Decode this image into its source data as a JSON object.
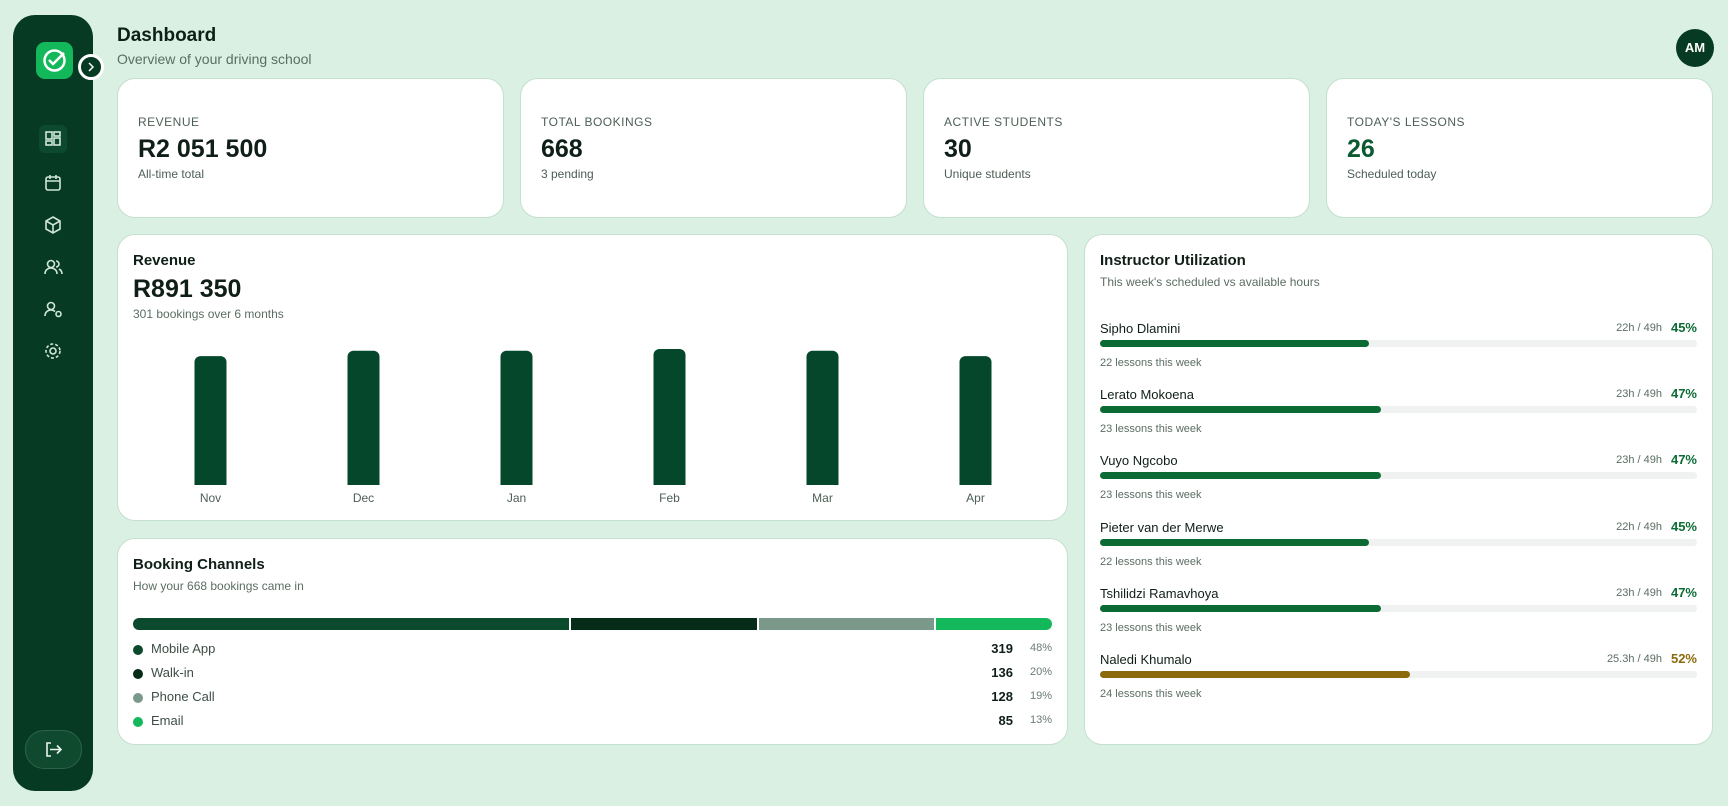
{
  "header": {
    "title": "Dashboard",
    "subtitle": "Overview of your driving school",
    "avatar": "AM"
  },
  "stats": [
    {
      "label": "REVENUE",
      "value": "R2 051 500",
      "note": "All-time total"
    },
    {
      "label": "TOTAL BOOKINGS",
      "value": 668,
      "note": "3 pending"
    },
    {
      "label": "ACTIVE STUDENTS",
      "value": 30,
      "note": "Unique students"
    },
    {
      "label": "TODAY'S LESSONS",
      "value": 26,
      "note": "Scheduled today"
    }
  ],
  "revenue_chart": {
    "title": "Revenue",
    "total": "R891 350",
    "subtitle": "301 bookings over 6 months",
    "categories": [
      "Nov",
      "Dec",
      "Jan",
      "Feb",
      "Mar",
      "Apr"
    ],
    "values": [
      144000,
      150000,
      150000,
      152000,
      150000,
      144000
    ],
    "color": "#05472a"
  },
  "booking_channels": {
    "title": "Booking Channels",
    "subtitle": "How your 668 bookings came in",
    "channels": [
      {
        "name": "Mobile App",
        "count": 319,
        "share": "48%",
        "color": "#0b4a2c"
      },
      {
        "name": "Walk-in",
        "count": 136,
        "share": "20%",
        "color": "#062b19"
      },
      {
        "name": "Phone Call",
        "count": 128,
        "share": "19%",
        "color": "#7a998a"
      },
      {
        "name": "Email",
        "count": 85,
        "share": "13%",
        "color": "#12b85a"
      }
    ]
  },
  "instructor_utilization": {
    "title": "Instructor Utilization",
    "subtitle": "This week's scheduled vs available hours",
    "instructors": [
      {
        "name": "Sipho Dlamini",
        "hours": "22h / 49h",
        "utilization": 45,
        "utilization_label": "45%",
        "lessons": "22 lessons this week",
        "color": "#0c6b35"
      },
      {
        "name": "Lerato Mokoena",
        "hours": "23h / 49h",
        "utilization": 47,
        "utilization_label": "47%",
        "lessons": "23 lessons this week",
        "color": "#0c6b35"
      },
      {
        "name": "Vuyo Ngcobo",
        "hours": "23h / 49h",
        "utilization": 47,
        "utilization_label": "47%",
        "lessons": "23 lessons this week",
        "color": "#0c6b35"
      },
      {
        "name": "Pieter van der Merwe",
        "hours": "22h / 49h",
        "utilization": 45,
        "utilization_label": "45%",
        "lessons": "22 lessons this week",
        "color": "#0c6b35"
      },
      {
        "name": "Tshilidzi Ramavhoya",
        "hours": "23h / 49h",
        "utilization": 47,
        "utilization_label": "47%",
        "lessons": "23 lessons this week",
        "color": "#0c6b35"
      },
      {
        "name": "Naledi Khumalo",
        "hours": "25.3h / 49h",
        "utilization": 52,
        "utilization_label": "52%",
        "lessons": "24 lessons this week",
        "color": "#8a6a0c"
      }
    ]
  }
}
